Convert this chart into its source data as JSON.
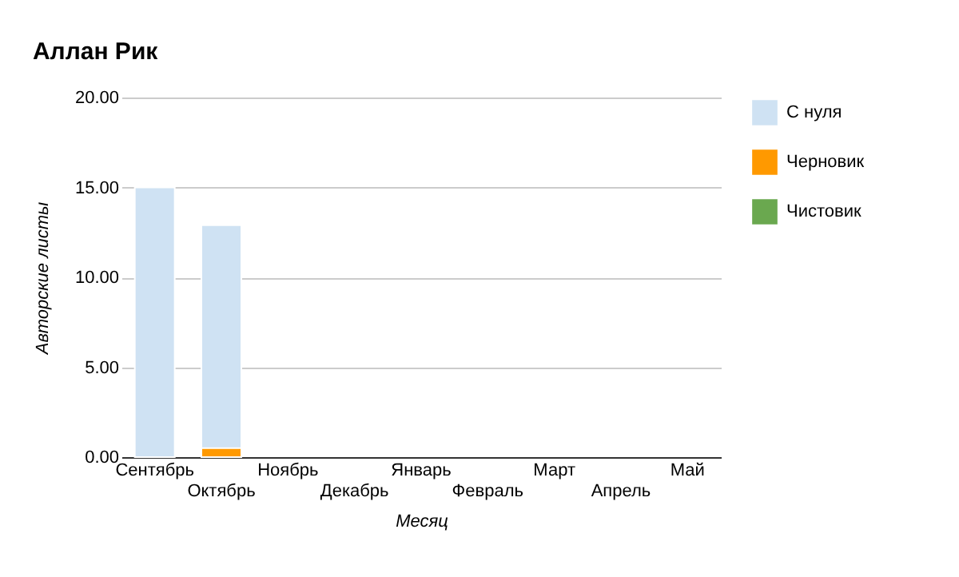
{
  "chart_data": {
    "type": "bar",
    "title": "Аллан Рик",
    "xlabel": "Месяц",
    "ylabel": "Авторские листы",
    "categories": [
      "Сентябрь",
      "Октябрь",
      "Ноябрь",
      "Декабрь",
      "Январь",
      "Февраль",
      "Март",
      "Апрель",
      "Май"
    ],
    "series": [
      {
        "name": "С нуля",
        "color": "#cfe2f3",
        "values": [
          15.0,
          12.9,
          null,
          null,
          null,
          null,
          null,
          null,
          null
        ]
      },
      {
        "name": "Черновик",
        "color": "#ff9900",
        "values": [
          null,
          0.5,
          null,
          null,
          null,
          null,
          null,
          null,
          null
        ]
      },
      {
        "name": "Чистовик",
        "color": "#6aa84f",
        "values": [
          null,
          null,
          null,
          null,
          null,
          null,
          null,
          null,
          null
        ]
      }
    ],
    "ylim": [
      0,
      20
    ],
    "yticks": [
      {
        "value": 0,
        "label": "0.00"
      },
      {
        "value": 5,
        "label": "5.00"
      },
      {
        "value": 10,
        "label": "10.00"
      },
      {
        "value": 15,
        "label": "15.00"
      },
      {
        "value": 20,
        "label": "20.00"
      }
    ],
    "grid": "y",
    "legend": "right"
  }
}
